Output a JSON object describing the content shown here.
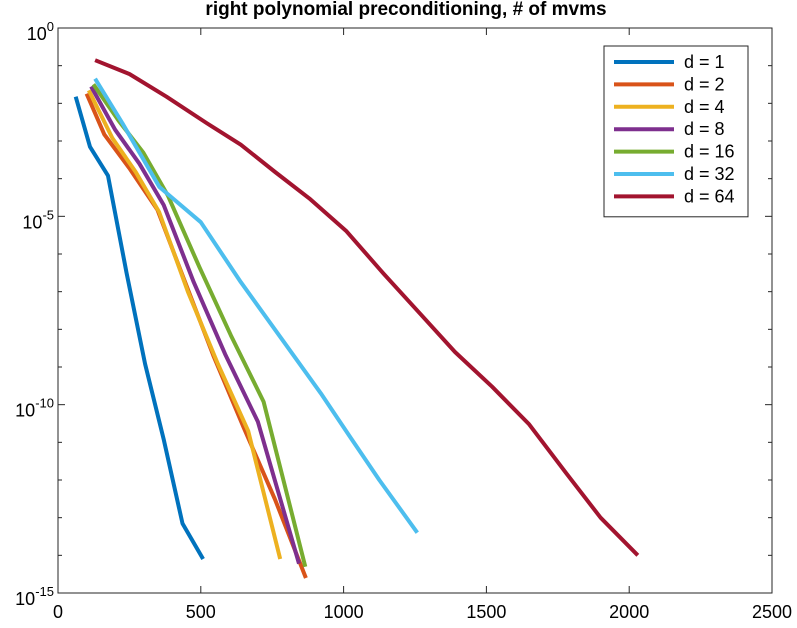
{
  "chart_data": {
    "type": "line",
    "title": "right polynomial preconditioning, # of mvms",
    "xlabel": "",
    "ylabel": "",
    "xscale": "linear",
    "yscale": "log",
    "xlim": [
      0,
      2500
    ],
    "ylim": [
      1e-15,
      1
    ],
    "xticks": [
      0,
      500,
      1000,
      1500,
      2000,
      2500
    ],
    "xtick_labels": [
      "0",
      "500",
      "1000",
      "1500",
      "2000",
      "2500"
    ],
    "yticks": [
      {
        "exp": 0,
        "base": "10",
        "sup": "0"
      },
      {
        "exp": -5,
        "base": "10",
        "sup": "-5"
      },
      {
        "exp": -10,
        "base": "10",
        "sup": "-10"
      },
      {
        "exp": -15,
        "base": "10",
        "sup": "-15"
      }
    ],
    "grid": false,
    "legend_position": "top-right",
    "series": [
      {
        "name": "d = 1",
        "color": "#0072BD",
        "x": [
          62,
          112,
          175,
          240,
          305,
          370,
          436,
          508
        ],
        "y": [
          0.015,
          0.0007,
          0.00012,
          3.2e-07,
          1.2e-09,
          1.2e-11,
          7e-14,
          8e-15
        ]
      },
      {
        "name": "d = 2",
        "color": "#D95319",
        "x": [
          100,
          162,
          252,
          348,
          445,
          544,
          650,
          760,
          868
        ],
        "y": [
          0.018,
          0.0015,
          0.00018,
          1.5e-05,
          1.8e-07,
          2e-09,
          2.5e-11,
          3e-13,
          2.5e-15
        ]
      },
      {
        "name": "d = 4",
        "color": "#EDB120",
        "x": [
          108,
          190,
          272,
          354,
          455,
          560,
          666,
          778
        ],
        "y": [
          0.022,
          0.0012,
          0.00015,
          1.3e-05,
          1e-07,
          1.2e-09,
          2e-11,
          8e-15
        ]
      },
      {
        "name": "d = 8",
        "color": "#7E2F8E",
        "x": [
          116,
          200,
          285,
          370,
          475,
          585,
          700,
          844
        ],
        "y": [
          0.028,
          0.002,
          0.00025,
          2e-05,
          1.8e-07,
          2.2e-09,
          3.5e-11,
          6e-15
        ]
      },
      {
        "name": "d = 16",
        "color": "#77AC30",
        "x": [
          124,
          212,
          298,
          385,
          495,
          605,
          720,
          866
        ],
        "y": [
          0.032,
          0.0035,
          0.0005,
          3.5e-05,
          4.5e-07,
          7e-09,
          1.2e-10,
          5e-15
        ]
      },
      {
        "name": "d = 32",
        "color": "#4DBEEE",
        "x": [
          130,
          225,
          355,
          500,
          640,
          780,
          920,
          1020,
          1125,
          1258
        ],
        "y": [
          0.045,
          0.003,
          6e-05,
          7e-06,
          1.8e-07,
          6e-09,
          2e-10,
          1.5e-11,
          1e-12,
          4e-14
        ]
      },
      {
        "name": "d = 64",
        "color": "#A2142F",
        "x": [
          130,
          250,
          380,
          520,
          640,
          760,
          880,
          1010,
          1140,
          1270,
          1390,
          1520,
          1650,
          1780,
          1900,
          2030
        ],
        "y": [
          0.14,
          0.06,
          0.015,
          0.003,
          0.0008,
          0.00015,
          3e-05,
          4e-06,
          3e-07,
          2.5e-08,
          2.5e-09,
          3e-10,
          3e-11,
          1.5e-12,
          1e-13,
          1e-14
        ]
      }
    ]
  }
}
